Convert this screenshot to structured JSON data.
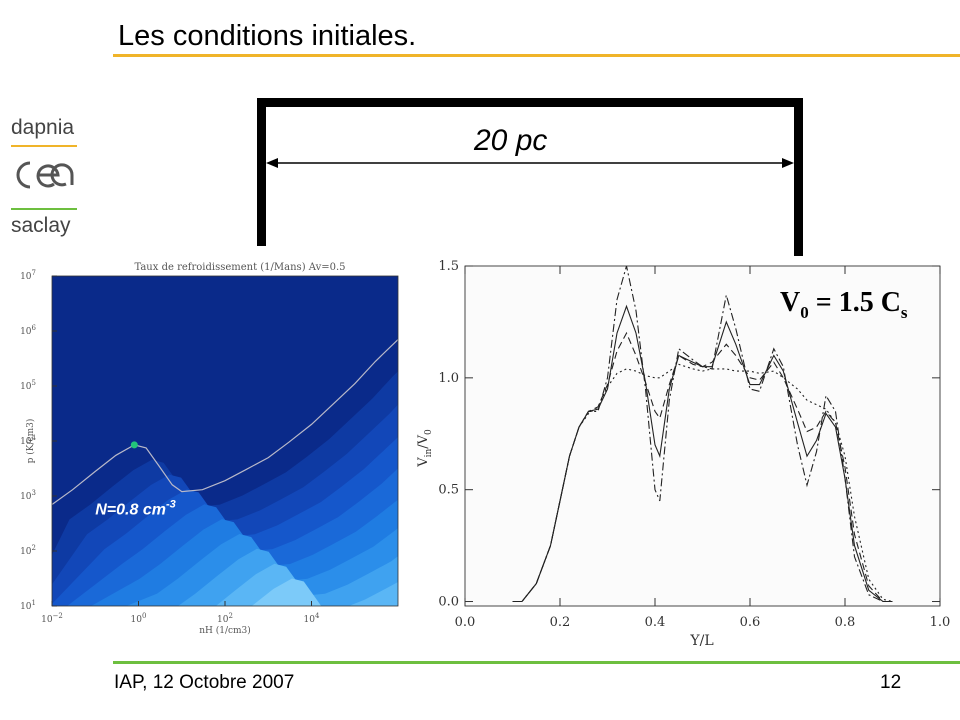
{
  "slide": {
    "title": "Les conditions initiales.",
    "footer_left": "IAP, 12 Octobre 2007",
    "page_number": "12",
    "accent_top": "#f0b429",
    "accent_bottom": "#6dbf3f"
  },
  "logo": {
    "line1": "dapnia",
    "line2": "cea",
    "line3": "saclay",
    "line_color_top": "#f0b429",
    "line_color_bottom": "#6dbf3f"
  },
  "scale_box": {
    "label": "20 pc"
  },
  "chart_data": [
    {
      "type": "heatmap",
      "title": "Taux de refroidissement (1/Mans) Av=0.5",
      "xlabel": "nH (1/cm3)",
      "ylabel": "p (K/cm3)",
      "x_scale": "log",
      "y_scale": "log",
      "xlim": [
        0.01,
        1000000
      ],
      "ylim": [
        10,
        10000000
      ],
      "x_ticks": [
        {
          "value": 0.01,
          "base": "10",
          "exp": "−2"
        },
        {
          "value": 1,
          "base": "10",
          "exp": "0"
        },
        {
          "value": 100,
          "base": "10",
          "exp": "2"
        },
        {
          "value": 10000,
          "base": "10",
          "exp": "4"
        }
      ],
      "y_ticks": [
        {
          "value": 10,
          "base": "10",
          "exp": "1"
        },
        {
          "value": 100,
          "base": "10",
          "exp": "2"
        },
        {
          "value": 1000,
          "base": "10",
          "exp": "3"
        },
        {
          "value": 10000,
          "base": "10",
          "exp": "4"
        },
        {
          "value": 100000,
          "base": "10",
          "exp": "5"
        },
        {
          "value": 1000000,
          "base": "10",
          "exp": "6"
        },
        {
          "value": 10000000,
          "base": "10",
          "exp": "7"
        }
      ],
      "equilibrium_curve": {
        "x": [
          0.01,
          0.03,
          0.1,
          0.3,
          0.8,
          1.5,
          3,
          6,
          10,
          30,
          100,
          300,
          1000,
          3000,
          10000,
          30000,
          100000,
          300000,
          1000000
        ],
        "y": [
          700,
          1300,
          2800,
          5500,
          8500,
          7500,
          3500,
          1600,
          1200,
          1300,
          1900,
          3000,
          5000,
          9500,
          20000,
          45000,
          110000,
          280000,
          700000
        ]
      },
      "marker": {
        "x": 0.8,
        "y": 8500,
        "color": "#22c47a"
      },
      "annotation": {
        "text": "N=0.8 cm",
        "superscript": "-3",
        "x": 0.1,
        "y": 700
      },
      "colors": [
        "#0a2a8a",
        "#0e3aa3",
        "#1247b8",
        "#1557cb",
        "#1a69d8",
        "#1f7ce2",
        "#2b8eea",
        "#3fa2f0",
        "#5ab6f5",
        "#7ccaf9"
      ]
    },
    {
      "type": "line",
      "title": "",
      "xlabel": "Y/L",
      "ylabel": "V",
      "ylabel_sub": "in",
      "ylabel_denominator": "/V",
      "ylabel_denominator_sub": "0",
      "xlim": [
        0,
        1
      ],
      "ylim": [
        -0.02,
        1.5
      ],
      "x_ticks": [
        "0.0",
        "0.2",
        "0.4",
        "0.6",
        "0.8",
        "1.0"
      ],
      "y_ticks": [
        "0.0",
        "0.5",
        "1.0",
        "1.5"
      ],
      "annotation": {
        "main": "V",
        "sub0": "0",
        "middle": " = 1.5 C",
        "sub1": "s"
      },
      "x": [
        0.1,
        0.12,
        0.15,
        0.18,
        0.2,
        0.22,
        0.24,
        0.26,
        0.28,
        0.3,
        0.32,
        0.34,
        0.36,
        0.38,
        0.4,
        0.41,
        0.43,
        0.45,
        0.48,
        0.5,
        0.52,
        0.55,
        0.57,
        0.6,
        0.62,
        0.65,
        0.67,
        0.7,
        0.72,
        0.74,
        0.76,
        0.78,
        0.8,
        0.82,
        0.85,
        0.88,
        0.9
      ],
      "series": [
        {
          "style": "solid",
          "values": [
            0,
            0,
            0.08,
            0.25,
            0.45,
            0.65,
            0.78,
            0.85,
            0.86,
            0.95,
            1.2,
            1.32,
            1.2,
            0.98,
            0.7,
            0.65,
            0.95,
            1.1,
            1.07,
            1.05,
            1.05,
            1.25,
            1.15,
            0.97,
            0.97,
            1.1,
            1.03,
            0.8,
            0.65,
            0.72,
            0.84,
            0.78,
            0.55,
            0.25,
            0.05,
            0,
            0
          ]
        },
        {
          "style": "dashed",
          "values": [
            0,
            0,
            0.08,
            0.25,
            0.45,
            0.65,
            0.78,
            0.85,
            0.87,
            0.97,
            1.12,
            1.2,
            1.1,
            0.98,
            0.85,
            0.82,
            0.97,
            1.1,
            1.06,
            1.05,
            1.07,
            1.15,
            1.1,
            1.0,
            0.99,
            1.07,
            1.0,
            0.86,
            0.76,
            0.78,
            0.85,
            0.8,
            0.6,
            0.3,
            0.07,
            0,
            0
          ]
        },
        {
          "style": "dotted",
          "values": [
            0,
            0,
            0.08,
            0.25,
            0.45,
            0.65,
            0.78,
            0.84,
            0.87,
            0.96,
            1.02,
            1.04,
            1.03,
            1.01,
            1.0,
            1.0,
            1.03,
            1.06,
            1.04,
            1.03,
            1.04,
            1.04,
            1.03,
            1.03,
            1.02,
            1.03,
            1.0,
            0.95,
            0.9,
            0.88,
            0.86,
            0.8,
            0.65,
            0.38,
            0.1,
            0.01,
            0
          ]
        },
        {
          "style": "dashdot",
          "values": [
            0,
            0,
            0.08,
            0.25,
            0.45,
            0.65,
            0.78,
            0.85,
            0.85,
            1.0,
            1.35,
            1.5,
            1.3,
            0.95,
            0.5,
            0.45,
            0.9,
            1.13,
            1.08,
            1.05,
            1.04,
            1.37,
            1.22,
            0.95,
            0.94,
            1.13,
            1.05,
            0.7,
            0.52,
            0.67,
            0.92,
            0.85,
            0.55,
            0.2,
            0.03,
            0,
            0
          ]
        }
      ]
    }
  ]
}
